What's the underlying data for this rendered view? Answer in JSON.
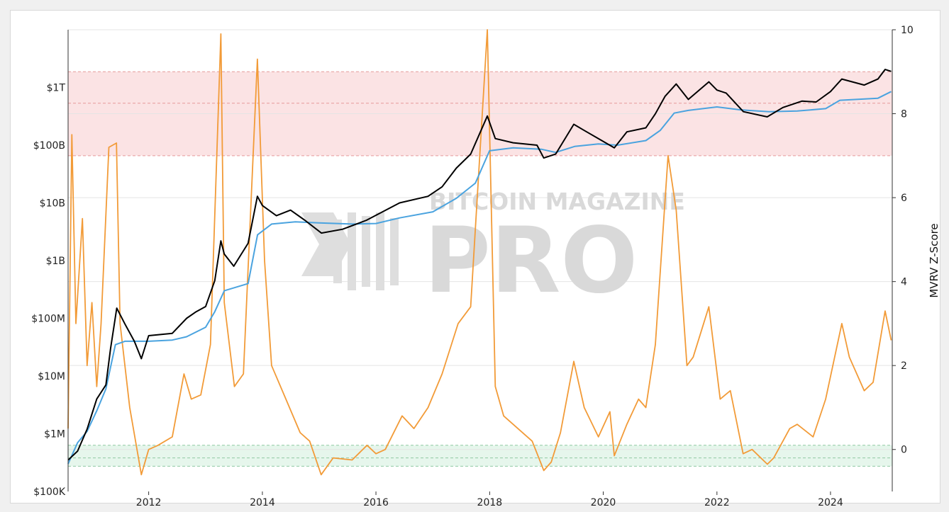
{
  "chart_data": {
    "type": "line",
    "title": "",
    "watermark": {
      "line1": "BITCOIN MAGAZINE",
      "line2": "PRO"
    },
    "x_axis": {
      "type": "date",
      "range": [
        "2010-08-01",
        "2025-02-01"
      ],
      "tick_labels": [
        "2012",
        "2014",
        "2016",
        "2018",
        "2020",
        "2022",
        "2024"
      ]
    },
    "y_left": {
      "scale": "log",
      "range": [
        100000,
        10000000000000
      ],
      "tick_values": [
        100000,
        1000000,
        10000000,
        100000000,
        1000000000,
        10000000000,
        100000000000,
        1000000000000
      ],
      "tick_labels": [
        "$100K",
        "$1M",
        "$10M",
        "$100M",
        "$1B",
        "$10B",
        "$100B",
        "$1T"
      ]
    },
    "y_right": {
      "label": "MVRV Z-Score",
      "scale": "linear",
      "range": [
        -1,
        10
      ],
      "tick_labels": [
        "0",
        "2",
        "4",
        "6",
        "8",
        "10"
      ],
      "tick_values": [
        0,
        2,
        4,
        6,
        8,
        10
      ]
    },
    "bands": [
      {
        "zone": "red",
        "from": 7,
        "to": 9,
        "mid": 8.25,
        "color": "#fbe3e4",
        "line_color": "#e59a9a"
      },
      {
        "zone": "green",
        "from": -0.4,
        "to": 0.1,
        "mid": -0.2,
        "color": "#e6f6ec",
        "line_color": "#8fc9a2"
      }
    ],
    "colors": {
      "market_cap": "#000000",
      "realized_cap": "#4aa3df",
      "z_score": "#f29b38",
      "grid": "#e4e4e4"
    },
    "series": [
      {
        "axis": "left",
        "color": "#000000",
        "points": [
          [
            "2010-08-01",
            350000
          ],
          [
            "2010-10-01",
            500000
          ],
          [
            "2010-12-01",
            1200000
          ],
          [
            "2011-02-01",
            4000000
          ],
          [
            "2011-04-01",
            7000000
          ],
          [
            "2011-05-01",
            30000000
          ],
          [
            "2011-06-10",
            150000000
          ],
          [
            "2011-08-01",
            80000000
          ],
          [
            "2011-10-01",
            40000000
          ],
          [
            "2011-11-15",
            20000000
          ],
          [
            "2012-01-01",
            50000000
          ],
          [
            "2012-06-01",
            55000000
          ],
          [
            "2012-09-01",
            100000000
          ],
          [
            "2012-11-01",
            130000000
          ],
          [
            "2013-01-01",
            160000000
          ],
          [
            "2013-03-01",
            450000000
          ],
          [
            "2013-04-09",
            2200000000
          ],
          [
            "2013-05-01",
            1300000000
          ],
          [
            "2013-07-01",
            800000000
          ],
          [
            "2013-10-01",
            2000000000
          ],
          [
            "2013-11-30",
            13000000000
          ],
          [
            "2014-01-01",
            9000000000
          ],
          [
            "2014-04-01",
            6000000000
          ],
          [
            "2014-07-01",
            7500000000
          ],
          [
            "2014-10-01",
            5000000000
          ],
          [
            "2015-01-15",
            3000000000
          ],
          [
            "2015-06-01",
            3500000000
          ],
          [
            "2015-11-01",
            5000000000
          ],
          [
            "2016-06-01",
            10000000000
          ],
          [
            "2016-12-01",
            13000000000
          ],
          [
            "2017-03-01",
            19000000000
          ],
          [
            "2017-06-01",
            40000000000
          ],
          [
            "2017-09-01",
            70000000000
          ],
          [
            "2017-12-17",
            320000000000
          ],
          [
            "2018-02-06",
            130000000000
          ],
          [
            "2018-06-01",
            110000000000
          ],
          [
            "2018-11-01",
            100000000000
          ],
          [
            "2018-12-15",
            60000000000
          ],
          [
            "2019-03-01",
            70000000000
          ],
          [
            "2019-06-26",
            230000000000
          ],
          [
            "2019-09-01",
            180000000000
          ],
          [
            "2019-12-01",
            130000000000
          ],
          [
            "2020-03-12",
            90000000000
          ],
          [
            "2020-06-01",
            170000000000
          ],
          [
            "2020-10-01",
            200000000000
          ],
          [
            "2020-12-01",
            350000000000
          ],
          [
            "2021-02-01",
            700000000000
          ],
          [
            "2021-04-14",
            1150000000000
          ],
          [
            "2021-07-01",
            620000000000
          ],
          [
            "2021-11-10",
            1250000000000
          ],
          [
            "2022-01-01",
            900000000000
          ],
          [
            "2022-03-01",
            800000000000
          ],
          [
            "2022-06-20",
            380000000000
          ],
          [
            "2022-11-20",
            310000000000
          ],
          [
            "2023-03-01",
            450000000000
          ],
          [
            "2023-07-01",
            580000000000
          ],
          [
            "2023-10-01",
            560000000000
          ],
          [
            "2024-01-01",
            850000000000
          ],
          [
            "2024-03-14",
            1400000000000
          ],
          [
            "2024-08-05",
            1100000000000
          ],
          [
            "2024-11-01",
            1400000000000
          ],
          [
            "2024-12-17",
            2050000000000
          ],
          [
            "2025-01-25",
            1900000000000
          ]
        ]
      },
      {
        "axis": "left",
        "color": "#4aa3df",
        "points": [
          [
            "2010-08-01",
            300000
          ],
          [
            "2010-10-01",
            700000
          ],
          [
            "2010-12-01",
            1100000
          ],
          [
            "2011-02-01",
            2500000
          ],
          [
            "2011-04-01",
            6000000
          ],
          [
            "2011-06-01",
            35000000
          ],
          [
            "2011-08-01",
            40000000
          ],
          [
            "2012-01-01",
            40000000
          ],
          [
            "2012-06-01",
            42000000
          ],
          [
            "2012-09-01",
            48000000
          ],
          [
            "2013-01-01",
            70000000
          ],
          [
            "2013-03-01",
            130000000
          ],
          [
            "2013-05-01",
            300000000
          ],
          [
            "2013-10-01",
            400000000
          ],
          [
            "2013-12-01",
            2800000000
          ],
          [
            "2014-03-01",
            4300000000
          ],
          [
            "2014-08-01",
            4700000000
          ],
          [
            "2015-01-01",
            4500000000
          ],
          [
            "2015-08-01",
            4300000000
          ],
          [
            "2016-01-01",
            4400000000
          ],
          [
            "2016-06-01",
            5500000000
          ],
          [
            "2017-01-01",
            7000000000
          ],
          [
            "2017-06-01",
            12000000000
          ],
          [
            "2017-10-01",
            22000000000
          ],
          [
            "2017-12-31",
            80000000000
          ],
          [
            "2018-06-01",
            90000000000
          ],
          [
            "2018-12-01",
            85000000000
          ],
          [
            "2019-03-01",
            75000000000
          ],
          [
            "2019-07-01",
            95000000000
          ],
          [
            "2019-12-01",
            105000000000
          ],
          [
            "2020-04-01",
            100000000000
          ],
          [
            "2020-10-01",
            120000000000
          ],
          [
            "2021-01-01",
            180000000000
          ],
          [
            "2021-04-01",
            360000000000
          ],
          [
            "2021-07-01",
            400000000000
          ],
          [
            "2022-01-01",
            460000000000
          ],
          [
            "2022-06-01",
            410000000000
          ],
          [
            "2022-12-01",
            380000000000
          ],
          [
            "2023-06-01",
            390000000000
          ],
          [
            "2023-12-01",
            430000000000
          ],
          [
            "2024-03-01",
            600000000000
          ],
          [
            "2024-11-01",
            650000000000
          ],
          [
            "2025-01-25",
            850000000000
          ]
        ]
      },
      {
        "axis": "right",
        "color": "#f29b38",
        "points": [
          [
            "2010-08-01",
            0.5
          ],
          [
            "2010-08-25",
            7.5
          ],
          [
            "2010-09-20",
            3.0
          ],
          [
            "2010-11-01",
            5.5
          ],
          [
            "2010-12-01",
            2.0
          ],
          [
            "2011-01-01",
            3.5
          ],
          [
            "2011-02-01",
            1.5
          ],
          [
            "2011-03-01",
            3.0
          ],
          [
            "2011-04-20",
            7.2
          ],
          [
            "2011-06-08",
            7.3
          ],
          [
            "2011-07-01",
            3.0
          ],
          [
            "2011-09-01",
            1.0
          ],
          [
            "2011-11-15",
            -0.6
          ],
          [
            "2012-01-01",
            0.0
          ],
          [
            "2012-03-01",
            0.1
          ],
          [
            "2012-06-01",
            0.3
          ],
          [
            "2012-08-15",
            1.8
          ],
          [
            "2012-10-01",
            1.2
          ],
          [
            "2012-12-01",
            1.3
          ],
          [
            "2013-02-01",
            2.5
          ],
          [
            "2013-04-09",
            9.9
          ],
          [
            "2013-05-01",
            3.5
          ],
          [
            "2013-07-05",
            1.5
          ],
          [
            "2013-09-01",
            1.8
          ],
          [
            "2013-11-30",
            9.3
          ],
          [
            "2014-01-15",
            4.5
          ],
          [
            "2014-03-01",
            2.0
          ],
          [
            "2014-06-01",
            1.2
          ],
          [
            "2014-09-01",
            0.4
          ],
          [
            "2014-11-01",
            0.2
          ],
          [
            "2015-01-14",
            -0.6
          ],
          [
            "2015-04-01",
            -0.2
          ],
          [
            "2015-08-01",
            -0.25
          ],
          [
            "2015-11-05",
            0.1
          ],
          [
            "2016-01-01",
            -0.1
          ],
          [
            "2016-03-01",
            0.0
          ],
          [
            "2016-06-17",
            0.8
          ],
          [
            "2016-09-01",
            0.5
          ],
          [
            "2016-12-01",
            1.0
          ],
          [
            "2017-03-01",
            1.8
          ],
          [
            "2017-06-12",
            3.0
          ],
          [
            "2017-09-01",
            3.4
          ],
          [
            "2017-12-17",
            10.0
          ],
          [
            "2018-02-06",
            1.5
          ],
          [
            "2018-04-01",
            0.8
          ],
          [
            "2018-07-01",
            0.5
          ],
          [
            "2018-10-01",
            0.2
          ],
          [
            "2018-12-15",
            -0.5
          ],
          [
            "2019-02-01",
            -0.3
          ],
          [
            "2019-04-01",
            0.4
          ],
          [
            "2019-06-26",
            2.1
          ],
          [
            "2019-09-01",
            1.0
          ],
          [
            "2019-12-01",
            0.3
          ],
          [
            "2020-02-13",
            0.9
          ],
          [
            "2020-03-12",
            -0.15
          ],
          [
            "2020-06-01",
            0.6
          ],
          [
            "2020-08-15",
            1.2
          ],
          [
            "2020-10-01",
            1.0
          ],
          [
            "2020-12-01",
            2.5
          ],
          [
            "2021-02-21",
            7.0
          ],
          [
            "2021-04-14",
            5.7
          ],
          [
            "2021-06-22",
            2.0
          ],
          [
            "2021-08-01",
            2.2
          ],
          [
            "2021-11-10",
            3.4
          ],
          [
            "2022-01-22",
            1.2
          ],
          [
            "2022-03-28",
            1.4
          ],
          [
            "2022-06-18",
            -0.1
          ],
          [
            "2022-08-15",
            0.0
          ],
          [
            "2022-11-21",
            -0.35
          ],
          [
            "2023-01-01",
            -0.2
          ],
          [
            "2023-03-01",
            0.2
          ],
          [
            "2023-04-14",
            0.5
          ],
          [
            "2023-06-01",
            0.6
          ],
          [
            "2023-09-11",
            0.3
          ],
          [
            "2023-12-01",
            1.2
          ],
          [
            "2024-03-14",
            3.0
          ],
          [
            "2024-05-01",
            2.2
          ],
          [
            "2024-08-05",
            1.4
          ],
          [
            "2024-10-01",
            1.6
          ],
          [
            "2024-12-17",
            3.3
          ],
          [
            "2025-01-25",
            2.6
          ]
        ]
      }
    ]
  }
}
